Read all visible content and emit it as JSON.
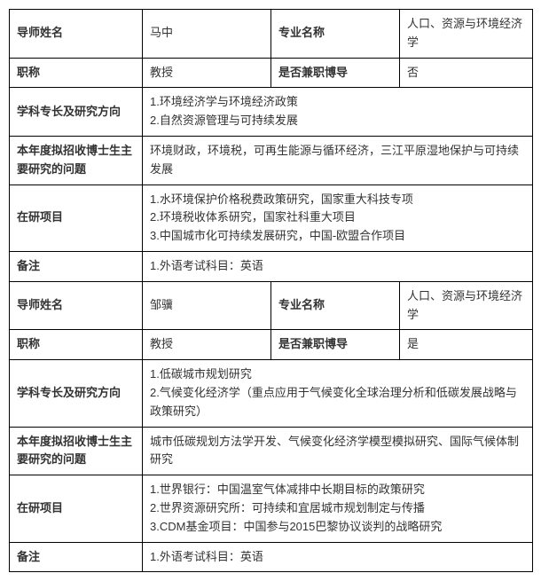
{
  "labels": {
    "advisor_name": "导师姓名",
    "major_name": "专业名称",
    "title": "职称",
    "concurrent": "是否兼职博导",
    "specialty": "学科专长及研究方向",
    "phd_topics": "本年度拟招收博士生主要研究的问题",
    "projects": "在研项目",
    "notes": "备注"
  },
  "records": [
    {
      "advisor": "马中",
      "major": "人口、资源与环境经济学",
      "title": "教授",
      "concurrent": "否",
      "specialty": [
        "1.环境经济学与环境经济政策",
        "2.自然资源管理与可持续发展"
      ],
      "phd_topics": "环境财政，环境税，可再生能源与循环经济，三江平原湿地保护与可持续发展",
      "projects": [
        "1.水环境保护价格税费政策研究，国家重大科技专项",
        "2.环境税收体系研究，国家社科重大项目",
        "3.中国城市化可持续发展研究，中国-欧盟合作项目"
      ],
      "notes": [
        "1.外语考试科目：英语"
      ]
    },
    {
      "advisor": "邹骥",
      "major": "人口、资源与环境经济学",
      "title": "教授",
      "concurrent": "是",
      "specialty": [
        "1.低碳城市规划研究",
        "2.气候变化经济学（重点应用于气候变化全球治理分析和低碳发展战略与政策研究）"
      ],
      "phd_topics": "城市低碳规划方法学开发、气候变化经济学模型模拟研究、国际气候体制研究",
      "projects": [
        "1.世界银行：中国温室气体减排中长期目标的政策研究",
        "2.世界资源研究所：可持续和宜居城市规划制定与传播",
        "3.CDM基金项目：中国参与2015巴黎协议谈判的战略研究"
      ],
      "notes": [
        "1.外语考试科目：英语"
      ]
    }
  ]
}
